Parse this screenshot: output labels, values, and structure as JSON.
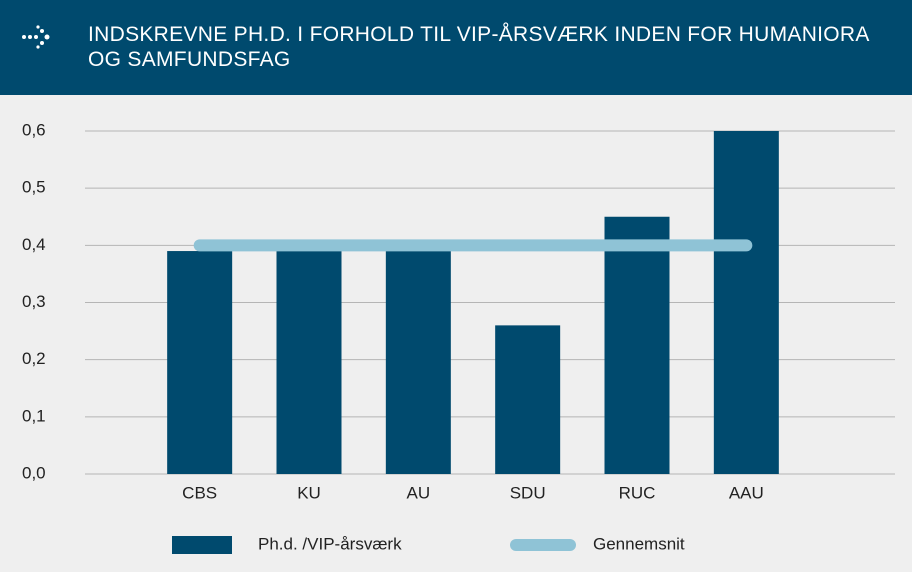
{
  "chart_data": {
    "type": "bar",
    "title": "INDSKREVNE PH.D. I FORHOLD TIL VIP-ÅRSVÆRK INDEN FOR HUMANIORA OG SAMFUNDSFAG",
    "categories": [
      "CBS",
      "KU",
      "AU",
      "SDU",
      "RUC",
      "AAU"
    ],
    "series": [
      {
        "name": "Ph.d. /VIP-årsværk",
        "type": "bar",
        "color": "#004a6e",
        "values": [
          0.39,
          0.4,
          0.41,
          0.26,
          0.45,
          0.6
        ]
      },
      {
        "name": "Gennemsnit",
        "type": "line",
        "color": "#8fc3d6",
        "values": [
          0.4,
          0.4,
          0.4,
          0.4,
          0.4,
          0.4
        ]
      }
    ],
    "ylim": [
      0,
      0.6
    ],
    "yticks": [
      {
        "value": 0,
        "label": "0,0"
      },
      {
        "value": 0.1,
        "label": "0,1"
      },
      {
        "value": 0.2,
        "label": "0,2"
      },
      {
        "value": 0.3,
        "label": "0,3"
      },
      {
        "value": 0.4,
        "label": "0,4"
      },
      {
        "value": 0.5,
        "label": "0,5"
      },
      {
        "value": 0.6,
        "label": "0,6"
      }
    ],
    "grid": true
  }
}
